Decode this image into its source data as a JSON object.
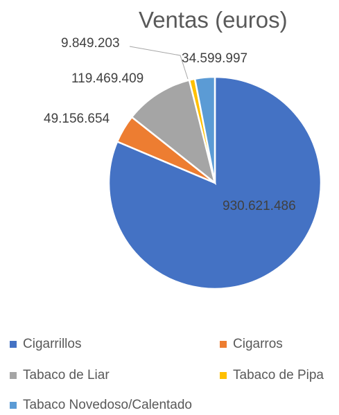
{
  "chart_data": {
    "type": "pie",
    "title": "Ventas (euros)",
    "categories": [
      "Cigarrillos",
      "Cigarros",
      "Tabaco de Liar",
      "Tabaco de Pipa",
      "Tabaco Novedoso/Calentado"
    ],
    "values": [
      930621486,
      49156654,
      119469409,
      9849203,
      34599997
    ],
    "data_labels": [
      "930.621.486",
      "49.156.654",
      "119.469.409",
      "9.849.203",
      "34.599.997"
    ],
    "colors": [
      "#4472C4",
      "#ED7D31",
      "#A5A5A5",
      "#FFC000",
      "#5B9BD5"
    ],
    "legend_position": "bottom",
    "start_angle": "top, clockwise"
  }
}
